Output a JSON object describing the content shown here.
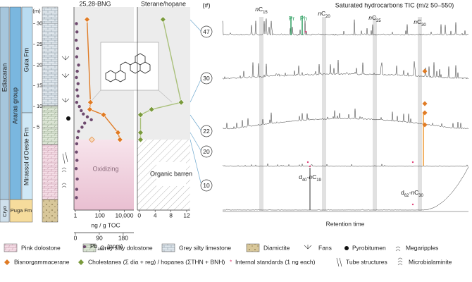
{
  "chart_data": [
    {
      "type": "line",
      "title": "25,28-BNG",
      "xlabel": "ng / g TOC",
      "log_x": true,
      "xlim": [
        1,
        60000
      ],
      "xticks": [
        1,
        100,
        {
          "value": 10000,
          "label": "10,000"
        }
      ],
      "ylabel": "(m)",
      "ylim": [
        -15,
        34
      ],
      "yticks": [
        5,
        10,
        15,
        20,
        25,
        30
      ],
      "shaded_label": "Oxidizing",
      "series": [
        {
          "name": "Bisnorgammacerane",
          "color": "#e07b24",
          "marker": "diamond",
          "x": [
            9,
            17,
            15,
            200,
            3000,
            4400
          ],
          "values": [
            31,
            11,
            9.3,
            8,
            3.7,
            2
          ]
        },
        {
          "color": "#e07b24",
          "marker": "open-diamond",
          "x": [
            22
          ],
          "values": [
            2
          ]
        }
      ]
    },
    {
      "type": "scatter",
      "xlabel": "Pb",
      "xlabel_sub": "auth",
      "xlabel_unit": "(ppm)",
      "xlim": [
        0,
        220
      ],
      "xticks": [
        0,
        90,
        180
      ],
      "ylim": [
        -15,
        34
      ],
      "color": "#6e4a6e",
      "x": [
        4,
        6,
        3,
        8,
        5,
        12,
        7,
        4,
        10,
        6,
        9,
        5,
        15,
        22,
        30,
        45,
        60,
        35,
        25,
        12,
        8,
        5,
        4,
        6,
        3,
        7,
        5,
        4
      ],
      "values": [
        30,
        28,
        26,
        24,
        22,
        20,
        18.5,
        17,
        15.5,
        14,
        12.5,
        11,
        10,
        9,
        8.2,
        7.5,
        6.8,
        6,
        5,
        4,
        2.5,
        1,
        -1,
        -3,
        -5,
        -7.5,
        -10,
        -12
      ]
    },
    {
      "type": "line",
      "title": "Sterane/hopane",
      "xlim": [
        -0.5,
        12.9
      ],
      "xticks": [
        0,
        4,
        8,
        12
      ],
      "ylim": [
        -15,
        34
      ],
      "shaded_label": "Organic barren",
      "series": [
        {
          "name": "Cholestanes (Σ dia + reg) / hopanes (ΣTHN + BNH)",
          "color": "#7a9a3c",
          "line_color": "#a9c07a",
          "marker": "diamond",
          "x": [
            6,
            10.6,
            3.1,
            0.3,
            0.3,
            0.3
          ],
          "values": [
            31,
            11,
            9.3,
            8,
            3.7,
            2
          ]
        }
      ]
    }
  ],
  "strat": {
    "era": "Ediacaran",
    "era_lower": "Cryo",
    "group": "Araras group",
    "formations": [
      "Guia Fm",
      "Mirassol d'Oeste Fm",
      "Puga Fm"
    ]
  },
  "chromatograms": {
    "title": "Saturated hydrocarbons TIC (m/z 50–550)",
    "header": "(#)",
    "xlabel": "Retention time",
    "samples": [
      "47",
      "30",
      "22",
      "20",
      "10"
    ],
    "peaks": [
      [
        "n",
        "C",
        "15"
      ],
      [
        "n",
        "C",
        "20"
      ],
      [
        "n",
        "C",
        "25"
      ],
      [
        "n",
        "C",
        "30"
      ],
      [
        "Pr"
      ],
      [
        "Ph"
      ],
      [
        "d",
        "40",
        "-n",
        "C",
        "19"
      ],
      [
        "d",
        "62",
        "-n",
        "C",
        "30"
      ]
    ]
  },
  "legend": {
    "lithology": [
      "Pink dolostone",
      "Grey silty dolostone",
      "Grey silty limestone",
      "Diamictite"
    ],
    "symbols": [
      "Fans",
      "Pyrobitumen",
      "Megaripples",
      "Internal standards (1 ng each)",
      "Tube structures",
      "Microbialaminite"
    ]
  }
}
